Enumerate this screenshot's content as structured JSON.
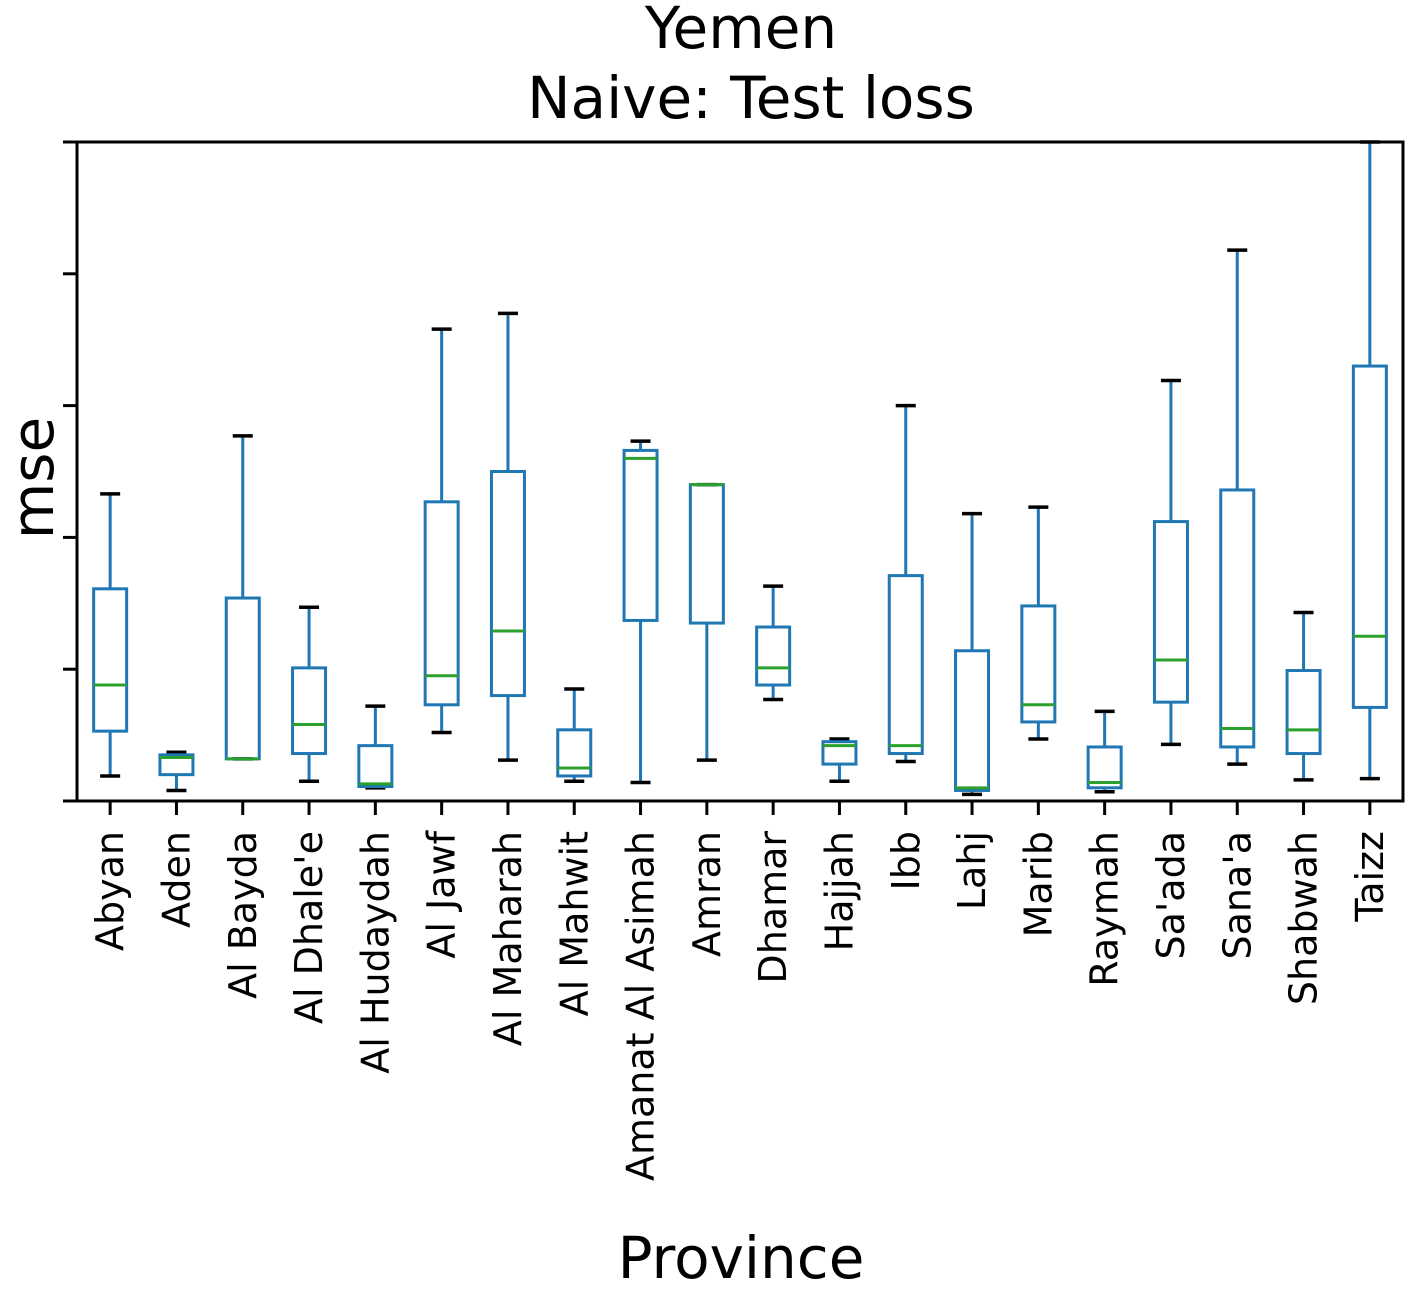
{
  "chart_data": {
    "type": "box",
    "title": "Yemen",
    "subtitle": "Naive: Test loss",
    "xlabel": "Province",
    "ylabel": "mse",
    "ylim": [
      0,
      5
    ],
    "yticks": [
      0,
      1,
      2,
      3,
      4,
      5
    ],
    "y_tick_labels_shown": false,
    "grid": false,
    "colors": {
      "box": "#1f77b4",
      "median": "#2ca02c",
      "cap": "#000000"
    },
    "categories": [
      "Abyan",
      "Aden",
      "Al Bayda",
      "Al Dhale'e",
      "Al Hudaydah",
      "Al Jawf",
      "Al Maharah",
      "Al Mahwit",
      "Amanat Al Asimah",
      "Amran",
      "Dhamar",
      "Hajjah",
      "Ibb",
      "Lahj",
      "Marib",
      "Raymah",
      "Sa'ada",
      "Sana'a",
      "Shabwah",
      "Taizz"
    ],
    "boxes": [
      {
        "whislo": 0.19,
        "q1": 0.53,
        "med": 0.88,
        "q3": 1.61,
        "whishi": 2.33
      },
      {
        "whislo": 0.08,
        "q1": 0.2,
        "med": 0.33,
        "q3": 0.35,
        "whishi": 0.37
      },
      {
        "whislo": 0.32,
        "q1": 0.32,
        "med": 0.32,
        "q3": 1.54,
        "whishi": 2.77
      },
      {
        "whislo": 0.15,
        "q1": 0.36,
        "med": 0.58,
        "q3": 1.01,
        "whishi": 1.47
      },
      {
        "whislo": 0.1,
        "q1": 0.11,
        "med": 0.13,
        "q3": 0.42,
        "whishi": 0.72
      },
      {
        "whislo": 0.52,
        "q1": 0.73,
        "med": 0.95,
        "q3": 2.27,
        "whishi": 3.58
      },
      {
        "whislo": 0.31,
        "q1": 0.8,
        "med": 1.29,
        "q3": 2.5,
        "whishi": 3.7
      },
      {
        "whislo": 0.15,
        "q1": 0.19,
        "med": 0.25,
        "q3": 0.54,
        "whishi": 0.85
      },
      {
        "whislo": 0.14,
        "q1": 1.37,
        "med": 2.6,
        "q3": 2.66,
        "whishi": 2.73
      },
      {
        "whislo": 0.31,
        "q1": 1.35,
        "med": 2.4,
        "q3": 2.4,
        "whishi": 2.4
      },
      {
        "whislo": 0.77,
        "q1": 0.88,
        "med": 1.01,
        "q3": 1.32,
        "whishi": 1.63
      },
      {
        "whislo": 0.15,
        "q1": 0.28,
        "med": 0.42,
        "q3": 0.45,
        "whishi": 0.47
      },
      {
        "whislo": 0.3,
        "q1": 0.36,
        "med": 0.42,
        "q3": 1.71,
        "whishi": 3.0
      },
      {
        "whislo": 0.05,
        "q1": 0.08,
        "med": 0.1,
        "q3": 1.14,
        "whishi": 2.18
      },
      {
        "whislo": 0.47,
        "q1": 0.6,
        "med": 0.73,
        "q3": 1.48,
        "whishi": 2.23
      },
      {
        "whislo": 0.07,
        "q1": 0.1,
        "med": 0.14,
        "q3": 0.41,
        "whishi": 0.68
      },
      {
        "whislo": 0.43,
        "q1": 0.75,
        "med": 1.07,
        "q3": 2.12,
        "whishi": 3.19
      },
      {
        "whislo": 0.28,
        "q1": 0.41,
        "med": 0.55,
        "q3": 2.36,
        "whishi": 4.18
      },
      {
        "whislo": 0.16,
        "q1": 0.36,
        "med": 0.54,
        "q3": 0.99,
        "whishi": 1.43
      },
      {
        "whislo": 0.17,
        "q1": 0.71,
        "med": 1.25,
        "q3": 3.3,
        "whishi": 5.0
      }
    ]
  }
}
